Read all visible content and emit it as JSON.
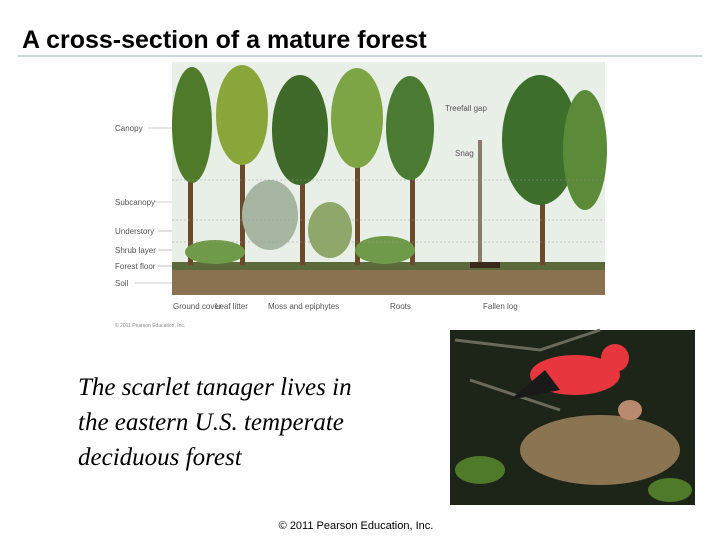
{
  "header": {
    "title": "A cross-section of a mature forest"
  },
  "figure": {
    "layer_labels": [
      "Canopy",
      "Subcanopy",
      "Understory",
      "Shrub layer",
      "Forest floor",
      "Soil"
    ],
    "top_labels": [
      "Treefall gap",
      "Snag"
    ],
    "bottom_labels": [
      "Ground cover",
      "Leaf litter",
      "Moss and epiphytes",
      "Roots",
      "Fallen log"
    ],
    "credit": "© 2011 Pearson Education, Inc."
  },
  "caption": {
    "lines": [
      "The scarlet tanager lives in",
      "the eastern U.S. temperate",
      "deciduous forest"
    ]
  },
  "footer": {
    "copyright": "© 2011 Pearson Education, Inc."
  }
}
